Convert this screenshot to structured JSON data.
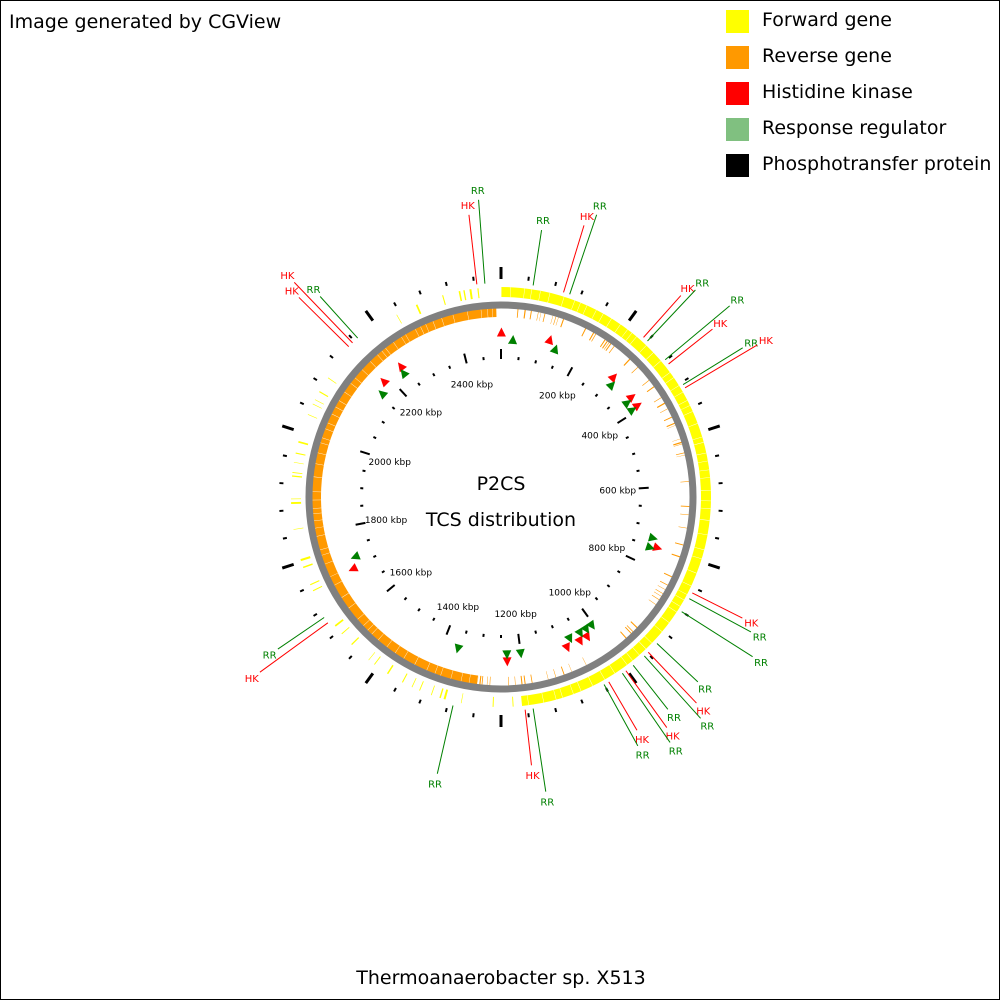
{
  "credit": "Image generated by CGView",
  "organism": "Thermoanaerobacter sp. X513",
  "center_title": "P2CS",
  "center_subtitle": "TCS distribution",
  "legend": [
    {
      "label": "Forward gene",
      "color": "#ffff00"
    },
    {
      "label": "Reverse gene",
      "color": "#ff9900"
    },
    {
      "label": "Histidine kinase",
      "color": "#ff0000"
    },
    {
      "label": "Response regulator",
      "color": "#80c080"
    },
    {
      "label": "Phosphotransfer protein",
      "color": "#000000"
    }
  ],
  "colors": {
    "forward": "#ffff00",
    "reverse": "#ff9900",
    "hk": "#ff0000",
    "rr": "#008000",
    "backbone": "#808080",
    "tick": "#000000"
  },
  "genome_length_kbp": 2500,
  "scale_labels": [
    "200 kbp",
    "400 kbp",
    "600 kbp",
    "800 kbp",
    "1000 kbp",
    "1200 kbp",
    "1400 kbp",
    "1600 kbp",
    "1800 kbp",
    "2000 kbp",
    "2200 kbp",
    "2400 kbp"
  ],
  "chart_data": {
    "type": "circular_genome_map",
    "genome_length_kbp": 2500,
    "tcs_markers_kbp": {
      "histidine_kinase": [
        1,
        120,
        300,
        365,
        390,
        750,
        1030,
        1050,
        1085,
        1235,
        1695,
        2185,
        2240
      ],
      "response_regulator": [
        30,
        140,
        310,
        370,
        392,
        730,
        755,
        1005,
        1022,
        1040,
        1070,
        1200,
        1235,
        1360,
        1720,
        2160,
        2235
      ]
    },
    "annotations": [
      {
        "label": "RR",
        "type": "rr",
        "kbp": 2470
      },
      {
        "label": "HK",
        "type": "hk",
        "kbp": 2455
      },
      {
        "label": "RR",
        "type": "rr",
        "kbp": 60
      },
      {
        "label": "HK",
        "type": "hk",
        "kbp": 118
      },
      {
        "label": "RR",
        "type": "rr",
        "kbp": 130
      },
      {
        "label": "HK",
        "type": "hk",
        "kbp": 290
      },
      {
        "label": "RR",
        "type": "rr",
        "kbp": 300
      },
      {
        "label": "RR",
        "type": "rr",
        "kbp": 348
      },
      {
        "label": "HK",
        "type": "hk",
        "kbp": 358
      },
      {
        "label": "RR",
        "type": "rr",
        "kbp": 405
      },
      {
        "label": "HK",
        "type": "hk",
        "kbp": 412
      },
      {
        "label": "HK",
        "type": "hk",
        "kbp": 810
      },
      {
        "label": "RR",
        "type": "rr",
        "kbp": 822
      },
      {
        "label": "RR",
        "type": "rr",
        "kbp": 850
      },
      {
        "label": "RR",
        "type": "rr",
        "kbp": 925
      },
      {
        "label": "HK",
        "type": "hk",
        "kbp": 948
      },
      {
        "label": "RR",
        "type": "rr",
        "kbp": 958
      },
      {
        "label": "RR",
        "type": "rr",
        "kbp": 985
      },
      {
        "label": "HK",
        "type": "hk",
        "kbp": 1002
      },
      {
        "label": "RR",
        "type": "rr",
        "kbp": 1010
      },
      {
        "label": "HK",
        "type": "hk",
        "kbp": 1040
      },
      {
        "label": "RR",
        "type": "rr",
        "kbp": 1050
      },
      {
        "label": "HK",
        "type": "hk",
        "kbp": 1205
      },
      {
        "label": "RR",
        "type": "rr",
        "kbp": 1190
      },
      {
        "label": "RR",
        "type": "rr",
        "kbp": 1340
      },
      {
        "label": "HK",
        "type": "hk",
        "kbp": 1625
      },
      {
        "label": "RR",
        "type": "rr",
        "kbp": 1637
      },
      {
        "label": "HK",
        "type": "hk",
        "kbp": 2185
      },
      {
        "label": "HK",
        "type": "hk",
        "kbp": 2195
      },
      {
        "label": "RR",
        "type": "rr",
        "kbp": 2208
      }
    ]
  }
}
